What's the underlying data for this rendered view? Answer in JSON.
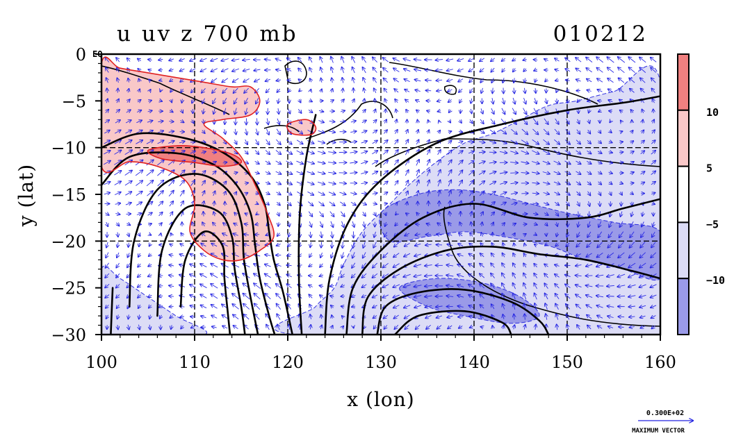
{
  "chart_data": {
    "type": "heatmap",
    "title_left": "u uv z 700 mb",
    "title_right": "010212",
    "xlabel": "x (lon)",
    "ylabel": "y (lat)",
    "xlim": [
      100,
      160
    ],
    "ylim": [
      -30,
      0
    ],
    "x_ticks": [
      "100",
      "110",
      "120",
      "130",
      "140",
      "150",
      "160"
    ],
    "y_ticks": [
      "0",
      "−5",
      "−10",
      "−15",
      "−20",
      "−25",
      "−30"
    ],
    "y_top_suffix": "EQ",
    "grid_lon": [
      110,
      120,
      130,
      140,
      150
    ],
    "grid_lat": [
      -10,
      -20
    ],
    "colorbar": {
      "labels": [
        "10",
        "5",
        "−5",
        "−10"
      ],
      "segments": [
        {
          "range": "above 10",
          "color": "#f08080"
        },
        {
          "range": "5 to 10",
          "color": "#f9c8c8"
        },
        {
          "range": "-5 to 5",
          "color": "#ffffff"
        },
        {
          "range": "-10 to -5",
          "color": "#dcdcf6"
        },
        {
          "range": "below -10",
          "color": "#9a9ae8"
        }
      ]
    },
    "u_positive_regions": [
      {
        "level": 5,
        "points": [
          [
            100,
            -1
          ],
          [
            102,
            -1.5
          ],
          [
            105,
            -2
          ],
          [
            108,
            -2.5
          ],
          [
            111,
            -3
          ],
          [
            114,
            -3.5
          ],
          [
            116,
            -3.5
          ],
          [
            117,
            -5
          ],
          [
            116,
            -6.5
          ],
          [
            113,
            -7
          ],
          [
            111,
            -7.5
          ],
          [
            113,
            -9
          ],
          [
            115,
            -11
          ],
          [
            116.5,
            -14
          ],
          [
            117.8,
            -17
          ],
          [
            118.5,
            -19.5
          ],
          [
            117,
            -21
          ],
          [
            115,
            -22
          ],
          [
            113,
            -22
          ],
          [
            111,
            -21
          ],
          [
            109.5,
            -19
          ],
          [
            110,
            -16
          ],
          [
            109,
            -13.5
          ],
          [
            106,
            -12
          ],
          [
            103,
            -11.5
          ],
          [
            100,
            -12
          ]
        ]
      },
      {
        "level": 10,
        "points": [
          [
            105,
            -10.3
          ],
          [
            108,
            -9.8
          ],
          [
            111,
            -10
          ],
          [
            114,
            -10.7
          ],
          [
            115,
            -11.6
          ],
          [
            113,
            -12
          ],
          [
            110,
            -11.6
          ],
          [
            106.5,
            -11.2
          ]
        ]
      },
      {
        "level": 5,
        "points": [
          [
            120,
            -7.5
          ],
          [
            122,
            -7
          ],
          [
            123,
            -7.8
          ],
          [
            122.5,
            -8.6
          ],
          [
            120.5,
            -8.5
          ]
        ]
      }
    ],
    "u_negative_regions": [
      {
        "level": -5,
        "points": [
          [
            100,
            -23
          ],
          [
            102,
            -24
          ],
          [
            105,
            -26
          ],
          [
            108,
            -28
          ],
          [
            111,
            -30
          ],
          [
            100,
            -30
          ]
        ]
      },
      {
        "level": -5,
        "points": [
          [
            121,
            -30
          ],
          [
            123,
            -27
          ],
          [
            125,
            -25
          ],
          [
            126,
            -22.5
          ],
          [
            128,
            -19
          ],
          [
            131,
            -16
          ],
          [
            133,
            -14
          ],
          [
            136,
            -11.5
          ],
          [
            139,
            -9.5
          ],
          [
            142,
            -8.5
          ],
          [
            145,
            -7
          ],
          [
            148,
            -5.5
          ],
          [
            151,
            -5
          ],
          [
            155,
            -4
          ],
          [
            160,
            -3
          ],
          [
            160,
            -30
          ]
        ]
      },
      {
        "level": -10,
        "points": [
          [
            130,
            -17
          ],
          [
            134,
            -15
          ],
          [
            138,
            -14.5
          ],
          [
            142,
            -15
          ],
          [
            146,
            -16
          ],
          [
            150,
            -17
          ],
          [
            155,
            -18
          ],
          [
            160,
            -19
          ],
          [
            160,
            -24
          ],
          [
            156,
            -23
          ],
          [
            152,
            -22
          ],
          [
            148,
            -20.5
          ],
          [
            143,
            -19.5
          ],
          [
            139,
            -19
          ],
          [
            135,
            -19.5
          ],
          [
            131,
            -20
          ]
        ]
      },
      {
        "level": -10,
        "points": [
          [
            132,
            -25
          ],
          [
            136,
            -24
          ],
          [
            141,
            -24.5
          ],
          [
            145,
            -26
          ],
          [
            147,
            -28
          ],
          [
            144,
            -28.8
          ],
          [
            139,
            -28
          ],
          [
            135,
            -27
          ]
        ]
      }
    ],
    "height_contours": [
      [
        [
          100,
          -10
        ],
        [
          104,
          -8.5
        ],
        [
          109,
          -9
        ],
        [
          113,
          -10.5
        ],
        [
          116,
          -13
        ],
        [
          117.5,
          -16
        ],
        [
          118,
          -19
        ],
        [
          118.5,
          -22
        ],
        [
          119.5,
          -25.5
        ],
        [
          120.5,
          -30
        ]
      ],
      [
        [
          100,
          -14
        ],
        [
          103,
          -11
        ],
        [
          108,
          -10.6
        ],
        [
          112,
          -11.8
        ],
        [
          114.5,
          -14
        ],
        [
          116,
          -17
        ],
        [
          116.5,
          -20.5
        ],
        [
          117,
          -24
        ],
        [
          118,
          -28
        ],
        [
          118.6,
          -30
        ]
      ],
      [
        [
          103,
          -27
        ],
        [
          103.5,
          -20
        ],
        [
          106,
          -14.5
        ],
        [
          110,
          -12.8
        ],
        [
          113.5,
          -14.5
        ],
        [
          115,
          -18
        ],
        [
          115.3,
          -22
        ],
        [
          116,
          -26
        ],
        [
          116.8,
          -30
        ]
      ],
      [
        [
          106,
          -28
        ],
        [
          106.5,
          -21
        ],
        [
          109,
          -16.5
        ],
        [
          112.5,
          -16.8
        ],
        [
          114,
          -19.5
        ],
        [
          114.3,
          -23
        ],
        [
          115,
          -27
        ],
        [
          115.4,
          -30
        ]
      ],
      [
        [
          108.5,
          -27
        ],
        [
          109,
          -22
        ],
        [
          111,
          -19
        ],
        [
          113,
          -20.5
        ],
        [
          113.2,
          -24
        ],
        [
          113.6,
          -28
        ],
        [
          113.8,
          -30
        ]
      ],
      [
        [
          101,
          -30
        ],
        [
          101.2,
          -25
        ]
      ],
      [
        [
          121.5,
          -30
        ],
        [
          121.2,
          -24
        ],
        [
          121.3,
          -17
        ],
        [
          122,
          -11
        ],
        [
          123,
          -6.5
        ]
      ],
      [
        [
          124,
          -30
        ],
        [
          124.5,
          -24
        ],
        [
          126.5,
          -18
        ],
        [
          130,
          -13.5
        ],
        [
          136,
          -9.5
        ],
        [
          143,
          -7.5
        ],
        [
          150,
          -6
        ],
        [
          156,
          -5.2
        ],
        [
          160,
          -4.5
        ]
      ],
      [
        [
          126.3,
          -30
        ],
        [
          127,
          -25
        ],
        [
          130,
          -21
        ],
        [
          134.5,
          -17.5
        ],
        [
          140,
          -16
        ],
        [
          146,
          -17.5
        ],
        [
          152,
          -17.5
        ],
        [
          156,
          -16.5
        ],
        [
          160,
          -15.5
        ]
      ],
      [
        [
          128,
          -30
        ],
        [
          128.6,
          -26
        ],
        [
          132,
          -23
        ],
        [
          137,
          -21
        ],
        [
          142,
          -20.6
        ],
        [
          147,
          -21.4
        ],
        [
          152,
          -22
        ],
        [
          157,
          -23.2
        ],
        [
          160,
          -24
        ]
      ],
      [
        [
          129.6,
          -30
        ],
        [
          130.5,
          -27
        ],
        [
          134,
          -25.5
        ],
        [
          139,
          -25.2
        ],
        [
          144,
          -26.5
        ],
        [
          147,
          -28.5
        ],
        [
          148,
          -30
        ]
      ],
      [
        [
          131.5,
          -30
        ],
        [
          134,
          -28
        ],
        [
          139,
          -27.5
        ],
        [
          143,
          -28.7
        ],
        [
          144,
          -30
        ]
      ]
    ],
    "vector_field": {
      "style": "blue arrows on 1.1-degree grid",
      "reference_label": "0.300E+02",
      "reference_caption": "MAXIMUM VECTOR"
    }
  }
}
